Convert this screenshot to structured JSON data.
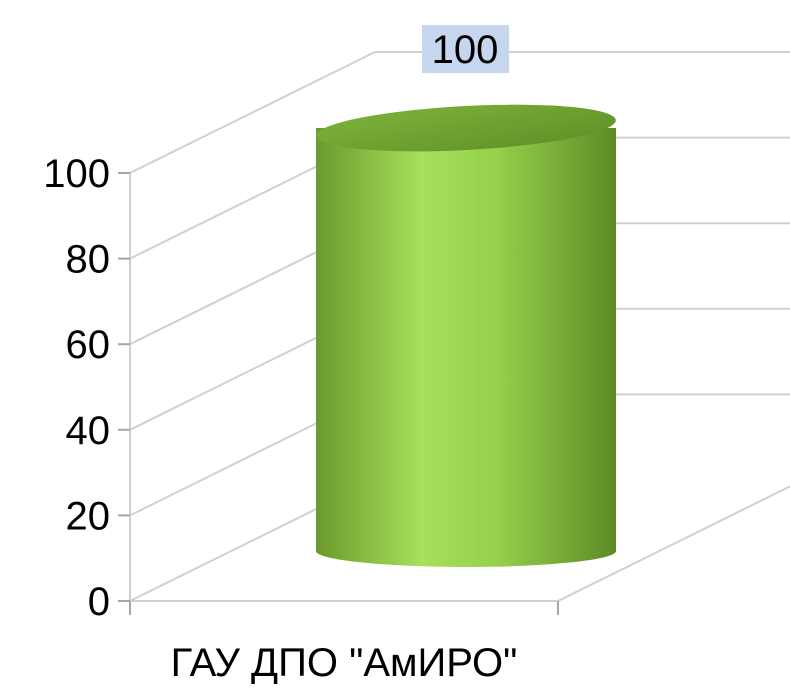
{
  "chart_data": {
    "type": "bar",
    "style": "3d-cylinder",
    "categories": [
      "ГАУ ДПО \"АмИРО\""
    ],
    "series": [
      {
        "values": [
          100
        ],
        "color": "#8cc63f"
      }
    ],
    "data_labels": [
      "100"
    ],
    "y_ticks": [
      "0",
      "20",
      "40",
      "60",
      "80",
      "100"
    ],
    "ylim": [
      0,
      100
    ],
    "grid": true,
    "legend": "none",
    "colors": {
      "bar": "#8cc63f",
      "bar_light": "#a6e05c",
      "bar_dark": "#5d8a26",
      "grid": "#d0d0d0",
      "label_box": "#c6d6ee",
      "text": "#000000"
    }
  }
}
